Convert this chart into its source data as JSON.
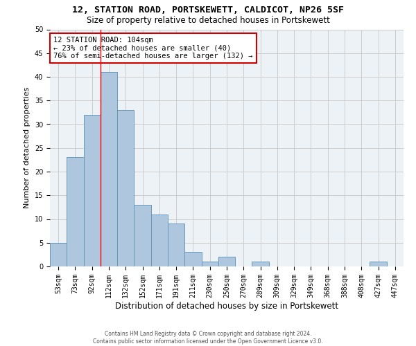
{
  "title1": "12, STATION ROAD, PORTSKEWETT, CALDICOT, NP26 5SF",
  "title2": "Size of property relative to detached houses in Portskewett",
  "xlabel": "Distribution of detached houses by size in Portskewett",
  "ylabel": "Number of detached properties",
  "footer1": "Contains HM Land Registry data © Crown copyright and database right 2024.",
  "footer2": "Contains public sector information licensed under the Open Government Licence v3.0.",
  "categories": [
    "53sqm",
    "73sqm",
    "92sqm",
    "112sqm",
    "132sqm",
    "152sqm",
    "171sqm",
    "191sqm",
    "211sqm",
    "230sqm",
    "250sqm",
    "270sqm",
    "289sqm",
    "309sqm",
    "329sqm",
    "349sqm",
    "368sqm",
    "388sqm",
    "408sqm",
    "427sqm",
    "447sqm"
  ],
  "values": [
    5,
    23,
    32,
    41,
    33,
    13,
    11,
    9,
    3,
    1,
    2,
    0,
    1,
    0,
    0,
    0,
    0,
    0,
    0,
    1,
    0
  ],
  "bar_color": "#aec6de",
  "bar_edge_color": "#6699bb",
  "grid_color": "#cccccc",
  "bg_color": "#edf2f7",
  "red_line_x": 2.5,
  "annotation_text": "12 STATION ROAD: 104sqm\n← 23% of detached houses are smaller (40)\n76% of semi-detached houses are larger (132) →",
  "annotation_box_color": "#ffffff",
  "annotation_box_edge": "#cc0000",
  "ylim": [
    0,
    50
  ],
  "yticks": [
    0,
    5,
    10,
    15,
    20,
    25,
    30,
    35,
    40,
    45,
    50
  ],
  "title1_fontsize": 9.5,
  "title2_fontsize": 8.5,
  "ylabel_fontsize": 8,
  "xlabel_fontsize": 8.5,
  "tick_fontsize": 7,
  "footer_fontsize": 5.5
}
